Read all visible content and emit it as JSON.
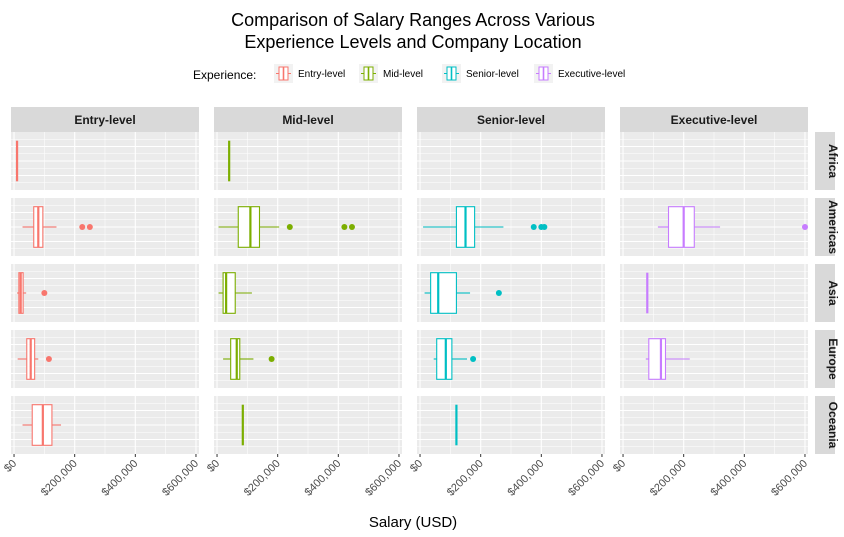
{
  "chart_data": {
    "type": "boxplot",
    "title": "Comparison of Salary Ranges Across Various\nExperience Levels and Company Location",
    "xlabel": "Salary (USD)",
    "ylabel": "",
    "xlim": [
      -10000,
      610000
    ],
    "x_ticks": [
      0,
      200000,
      400000,
      600000
    ],
    "x_tick_labels": [
      "$0",
      "$200,000",
      "$400,000",
      "$600,000"
    ],
    "legend_title": "Experience:",
    "legend_position": "top",
    "grid": true,
    "facet_columns": [
      "Entry-level",
      "Mid-level",
      "Senior-level",
      "Executive-level"
    ],
    "facet_rows": [
      "Africa",
      "Americas",
      "Asia",
      "Europe",
      "Oceania"
    ],
    "colors": {
      "Entry-level": "#F8766D",
      "Mid-level": "#7CAE00",
      "Senior-level": "#00BFC4",
      "Executive-level": "#C77CFF"
    },
    "series": [
      {
        "name": "Entry-level",
        "boxes": [
          {
            "row": "Africa",
            "min": 10000,
            "q1": 10000,
            "median": 10000,
            "q3": 10000,
            "max": 10000,
            "outliers": []
          },
          {
            "row": "Americas",
            "min": 28000,
            "q1": 65000,
            "median": 80000,
            "q3": 95000,
            "max": 140000,
            "outliers": [
              225000,
              250000
            ]
          },
          {
            "row": "Asia",
            "min": 10000,
            "q1": 16000,
            "median": 22000,
            "q3": 30000,
            "max": 40000,
            "outliers": [
              100000
            ]
          },
          {
            "row": "Europe",
            "min": 12000,
            "q1": 42000,
            "median": 55000,
            "q3": 68000,
            "max": 80000,
            "outliers": [
              115000
            ]
          },
          {
            "row": "Oceania",
            "min": 28000,
            "q1": 60000,
            "median": 95000,
            "q3": 125000,
            "max": 155000,
            "outliers": []
          }
        ]
      },
      {
        "name": "Mid-level",
        "boxes": [
          {
            "row": "Africa",
            "min": 40000,
            "q1": 40000,
            "median": 40000,
            "q3": 40000,
            "max": 40000,
            "outliers": []
          },
          {
            "row": "Americas",
            "min": 5000,
            "q1": 70000,
            "median": 110000,
            "q3": 140000,
            "max": 205000,
            "outliers": [
              240000,
              420000,
              445000
            ]
          },
          {
            "row": "Asia",
            "min": 5000,
            "q1": 20000,
            "median": 30000,
            "q3": 60000,
            "max": 115000,
            "outliers": []
          },
          {
            "row": "Europe",
            "min": 20000,
            "q1": 45000,
            "median": 65000,
            "q3": 75000,
            "max": 120000,
            "outliers": [
              180000
            ]
          },
          {
            "row": "Oceania",
            "min": 85000,
            "q1": 85000,
            "median": 85000,
            "q3": 85000,
            "max": 85000,
            "outliers": []
          }
        ]
      },
      {
        "name": "Senior-level",
        "boxes": [
          {
            "row": "Americas",
            "min": 10000,
            "q1": 120000,
            "median": 150000,
            "q3": 180000,
            "max": 275000,
            "outliers": [
              375000,
              400000,
              410000
            ]
          },
          {
            "row": "Asia",
            "min": 15000,
            "q1": 35000,
            "median": 60000,
            "q3": 120000,
            "max": 165000,
            "outliers": [
              260000
            ]
          },
          {
            "row": "Europe",
            "min": 45000,
            "q1": 55000,
            "median": 85000,
            "q3": 105000,
            "max": 155000,
            "outliers": [
              175000
            ]
          },
          {
            "row": "Oceania",
            "min": 120000,
            "q1": 120000,
            "median": 120000,
            "q3": 120000,
            "max": 120000,
            "outliers": []
          }
        ]
      },
      {
        "name": "Executive-level",
        "boxes": [
          {
            "row": "Americas",
            "min": 115000,
            "q1": 150000,
            "median": 200000,
            "q3": 235000,
            "max": 320000,
            "outliers": [
              600000
            ]
          },
          {
            "row": "Asia",
            "min": 80000,
            "q1": 80000,
            "median": 80000,
            "q3": 80000,
            "max": 80000,
            "outliers": []
          },
          {
            "row": "Europe",
            "min": 75000,
            "q1": 85000,
            "median": 125000,
            "q3": 140000,
            "max": 220000,
            "outliers": []
          }
        ]
      }
    ]
  }
}
